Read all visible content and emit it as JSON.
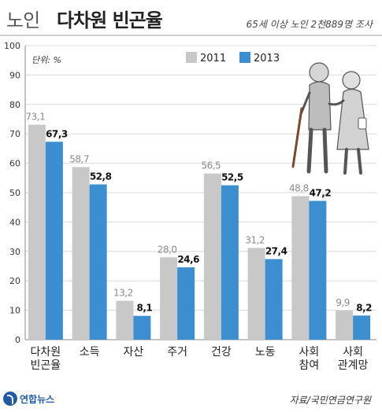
{
  "header": {
    "title_pre": "노인",
    "title_main": "다차원 빈곤율",
    "subtitle": "65세 이상 노인 2천889명 조사"
  },
  "footer": {
    "logo_text": "연합뉴스",
    "source": "자료/국민연금연구원"
  },
  "colors": {
    "s2011": "#c8c8c8",
    "s2013": "#3b8fd0"
  },
  "chart_data": {
    "type": "bar",
    "unit_label": "단위: %",
    "categories": [
      [
        "다차원",
        "빈곤율"
      ],
      [
        "소득"
      ],
      [
        "자산"
      ],
      [
        "주거"
      ],
      [
        "건강"
      ],
      [
        "노동"
      ],
      [
        "사회",
        "참여"
      ],
      [
        "사회",
        "관계망"
      ]
    ],
    "series": [
      {
        "name": "2011",
        "values": [
          73.1,
          58.7,
          13.2,
          28.0,
          56.5,
          31.2,
          48.8,
          9.9
        ],
        "labels": [
          "73,1",
          "58,7",
          "13,2",
          "28,0",
          "56,5",
          "31,2",
          "48,8",
          "9,9"
        ]
      },
      {
        "name": "2013",
        "values": [
          67.3,
          52.8,
          8.1,
          24.6,
          52.5,
          27.4,
          47.2,
          8.2
        ],
        "labels": [
          "67,3",
          "52,8",
          "8,1",
          "24,6",
          "52,5",
          "27,4",
          "47,2",
          "8,2"
        ]
      }
    ],
    "yticks": [
      0,
      10,
      20,
      30,
      40,
      50,
      60,
      70,
      80,
      90,
      100
    ],
    "ylim": [
      0,
      100
    ],
    "grid": true,
    "legend": "top-left"
  }
}
